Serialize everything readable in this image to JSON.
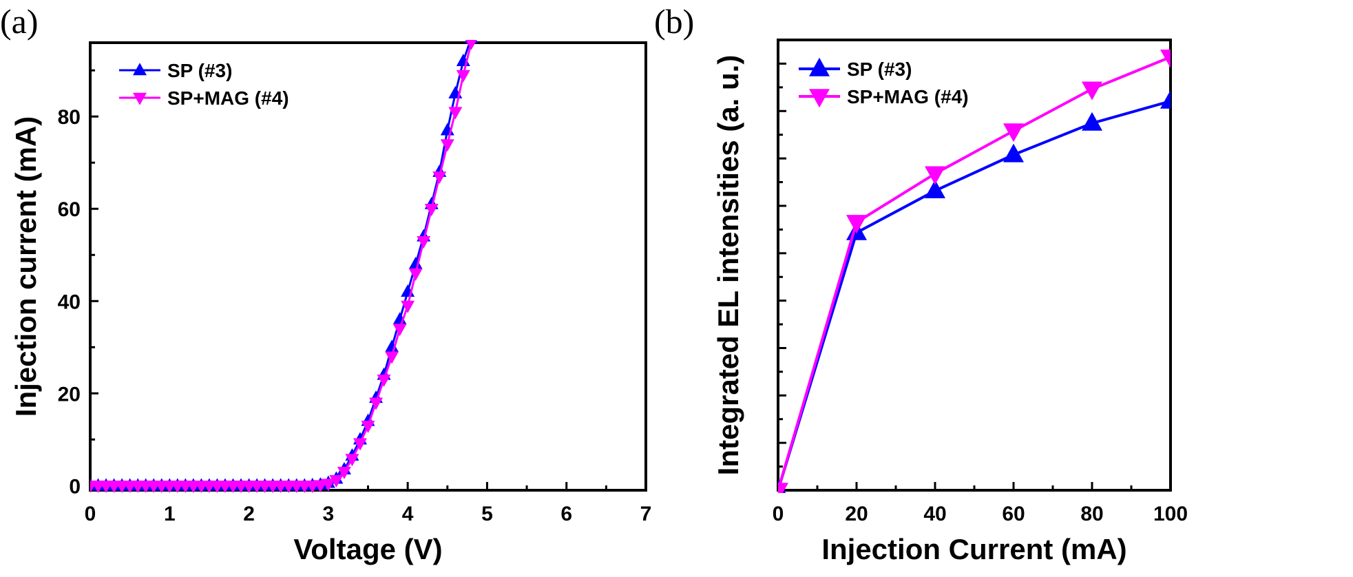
{
  "chart_data": [
    {
      "panel": "(a)",
      "type": "line",
      "title": "",
      "xlabel": "Voltage (V)",
      "ylabel": "Injection current (mA)",
      "xlim": [
        0,
        7
      ],
      "ylim": [
        -1,
        96
      ],
      "xticks": [
        0,
        1,
        2,
        3,
        4,
        5,
        6,
        7
      ],
      "yticks": [
        0,
        20,
        40,
        60,
        80
      ],
      "grid": false,
      "legend_position": "top-left",
      "series": [
        {
          "name": "SP (#3)",
          "color": "#0000ff",
          "marker": "triangle-up",
          "x": [
            0,
            0.1,
            0.2,
            0.3,
            0.4,
            0.5,
            0.6,
            0.7,
            0.8,
            0.9,
            1.0,
            1.1,
            1.2,
            1.3,
            1.4,
            1.5,
            1.6,
            1.7,
            1.8,
            1.9,
            2.0,
            2.1,
            2.2,
            2.3,
            2.4,
            2.5,
            2.6,
            2.7,
            2.8,
            2.9,
            3.0,
            3.1,
            3.2,
            3.3,
            3.4,
            3.5,
            3.6,
            3.7,
            3.8,
            3.9,
            4.0,
            4.1,
            4.2,
            4.3,
            4.4,
            4.5,
            4.6,
            4.7,
            4.8
          ],
          "y": [
            0,
            0,
            0,
            0,
            0,
            0,
            0,
            0,
            0,
            0,
            0,
            0,
            0,
            0,
            0,
            0,
            0,
            0,
            0,
            0,
            0,
            0,
            0,
            0,
            0,
            0,
            0,
            0,
            0.1,
            0.2,
            0.6,
            1.5,
            3.5,
            6.5,
            10,
            14,
            19,
            24,
            30,
            36,
            42,
            48,
            54,
            61,
            68,
            77,
            85,
            92,
            97
          ]
        },
        {
          "name": "SP+MAG (#4)",
          "color": "#ff00ff",
          "marker": "triangle-down",
          "x": [
            0,
            0.1,
            0.2,
            0.3,
            0.4,
            0.5,
            0.6,
            0.7,
            0.8,
            0.9,
            1.0,
            1.1,
            1.2,
            1.3,
            1.4,
            1.5,
            1.6,
            1.7,
            1.8,
            1.9,
            2.0,
            2.1,
            2.2,
            2.3,
            2.4,
            2.5,
            2.6,
            2.7,
            2.8,
            2.9,
            3.0,
            3.1,
            3.2,
            3.3,
            3.4,
            3.5,
            3.6,
            3.7,
            3.8,
            3.9,
            4.0,
            4.1,
            4.2,
            4.3,
            4.4,
            4.5,
            4.6,
            4.7,
            4.8
          ],
          "y": [
            0,
            0,
            0,
            0,
            0,
            0,
            0,
            0,
            0,
            0,
            0,
            0,
            0,
            0,
            0,
            0,
            0,
            0,
            0,
            0,
            0,
            0,
            0,
            0,
            0,
            0,
            0,
            0,
            0,
            0.1,
            0.4,
            1.2,
            3,
            5.8,
            9.2,
            13,
            18,
            23,
            28,
            34,
            39,
            46,
            53,
            60,
            67,
            74,
            81,
            89,
            96
          ]
        }
      ]
    },
    {
      "panel": "(b)",
      "type": "line",
      "title": "",
      "xlabel": "Injection Current (mA)",
      "ylabel": "Integrated EL intensities (a. u.)",
      "xlim": [
        0,
        100
      ],
      "ylim": [
        0,
        1
      ],
      "xticks": [
        0,
        20,
        40,
        60,
        80,
        100
      ],
      "yticks": [],
      "y_minor_ticks": 18,
      "grid": false,
      "legend_position": "top-left",
      "series": [
        {
          "name": "SP (#3)",
          "color": "#0000ff",
          "marker": "triangle-up",
          "x": [
            0,
            20,
            40,
            60,
            80,
            100
          ],
          "y": [
            0,
            0.572,
            0.665,
            0.745,
            0.815,
            0.864
          ]
        },
        {
          "name": "SP+MAG (#4)",
          "color": "#ff00ff",
          "marker": "triangle-down",
          "x": [
            0,
            20,
            40,
            60,
            80,
            100
          ],
          "y": [
            0,
            0.595,
            0.703,
            0.798,
            0.891,
            0.962
          ]
        }
      ]
    }
  ]
}
